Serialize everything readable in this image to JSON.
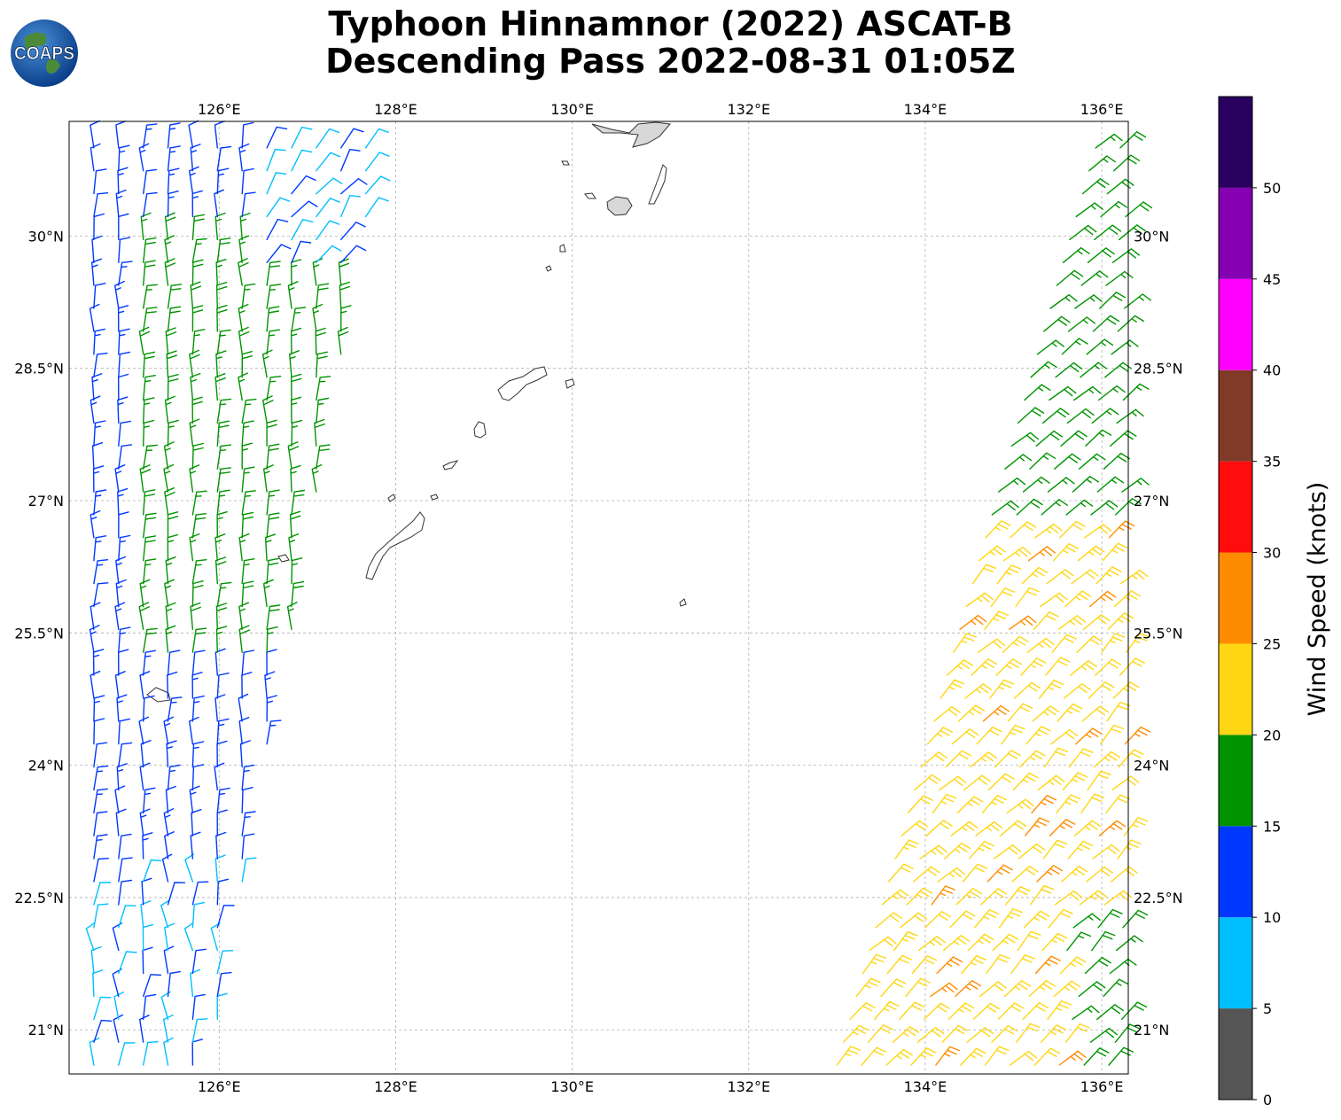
{
  "title": {
    "line1": "Typhoon Hinnamnor (2022) ASCAT-B",
    "line2": "Descending Pass 2022-08-31 01:05Z"
  },
  "logo": {
    "text": "COAPS"
  },
  "map": {
    "lon_range": [
      124.3,
      136.3
    ],
    "lat_range": [
      20.5,
      31.3
    ],
    "x_ticks": [
      {
        "lon": 126,
        "label": "126°E"
      },
      {
        "lon": 128,
        "label": "128°E"
      },
      {
        "lon": 130,
        "label": "130°E"
      },
      {
        "lon": 132,
        "label": "132°E"
      },
      {
        "lon": 134,
        "label": "134°E"
      },
      {
        "lon": 136,
        "label": "136°E"
      }
    ],
    "y_ticks": [
      {
        "lat": 30.0,
        "label": "30°N"
      },
      {
        "lat": 28.5,
        "label": "28.5°N"
      },
      {
        "lat": 27.0,
        "label": "27°N"
      },
      {
        "lat": 25.5,
        "label": "25.5°N"
      },
      {
        "lat": 24.0,
        "label": "24°N"
      },
      {
        "lat": 22.5,
        "label": "22.5°N"
      },
      {
        "lat": 21.0,
        "label": "21°N"
      }
    ],
    "grid": true,
    "land_color": "#ffffff",
    "coast_color": "#333333"
  },
  "colorbar": {
    "label": "Wind Speed (knots)",
    "bins": [
      {
        "min": 0,
        "max": 5,
        "color": "#555555"
      },
      {
        "min": 5,
        "max": 10,
        "color": "#00bfff"
      },
      {
        "min": 10,
        "max": 15,
        "color": "#0038ff"
      },
      {
        "min": 15,
        "max": 20,
        "color": "#009400"
      },
      {
        "min": 20,
        "max": 25,
        "color": "#ffd612"
      },
      {
        "min": 25,
        "max": 30,
        "color": "#ff8c00"
      },
      {
        "min": 30,
        "max": 35,
        "color": "#ff0d0d"
      },
      {
        "min": 35,
        "max": 40,
        "color": "#823a28"
      },
      {
        "min": 40,
        "max": 45,
        "color": "#ff00ff"
      },
      {
        "min": 45,
        "max": 50,
        "color": "#8400b0"
      },
      {
        "min": 50,
        "max": 55,
        "color": "#2a0060"
      }
    ],
    "tick_labels": [
      "0",
      "5",
      "10",
      "15",
      "20",
      "25",
      "30",
      "35",
      "40",
      "45",
      "50"
    ]
  },
  "swaths": [
    {
      "name": "west",
      "lat_start": 20.6,
      "lat_end": 31.25,
      "east_edge_lon_at_start": 125.9,
      "east_edge_lon_at_end": 127.9,
      "west_edge_lon": 124.3,
      "wind_dir_deg": 0,
      "speed_knots": 12
    },
    {
      "name": "east",
      "lat_start": 20.6,
      "lat_end": 31.25,
      "west_edge_lon_at_start": 133.0,
      "west_edge_lon_at_end": 136.0,
      "east_edge_lon": 136.3,
      "wind_dir_deg": 45,
      "speed_knots": 22
    }
  ]
}
